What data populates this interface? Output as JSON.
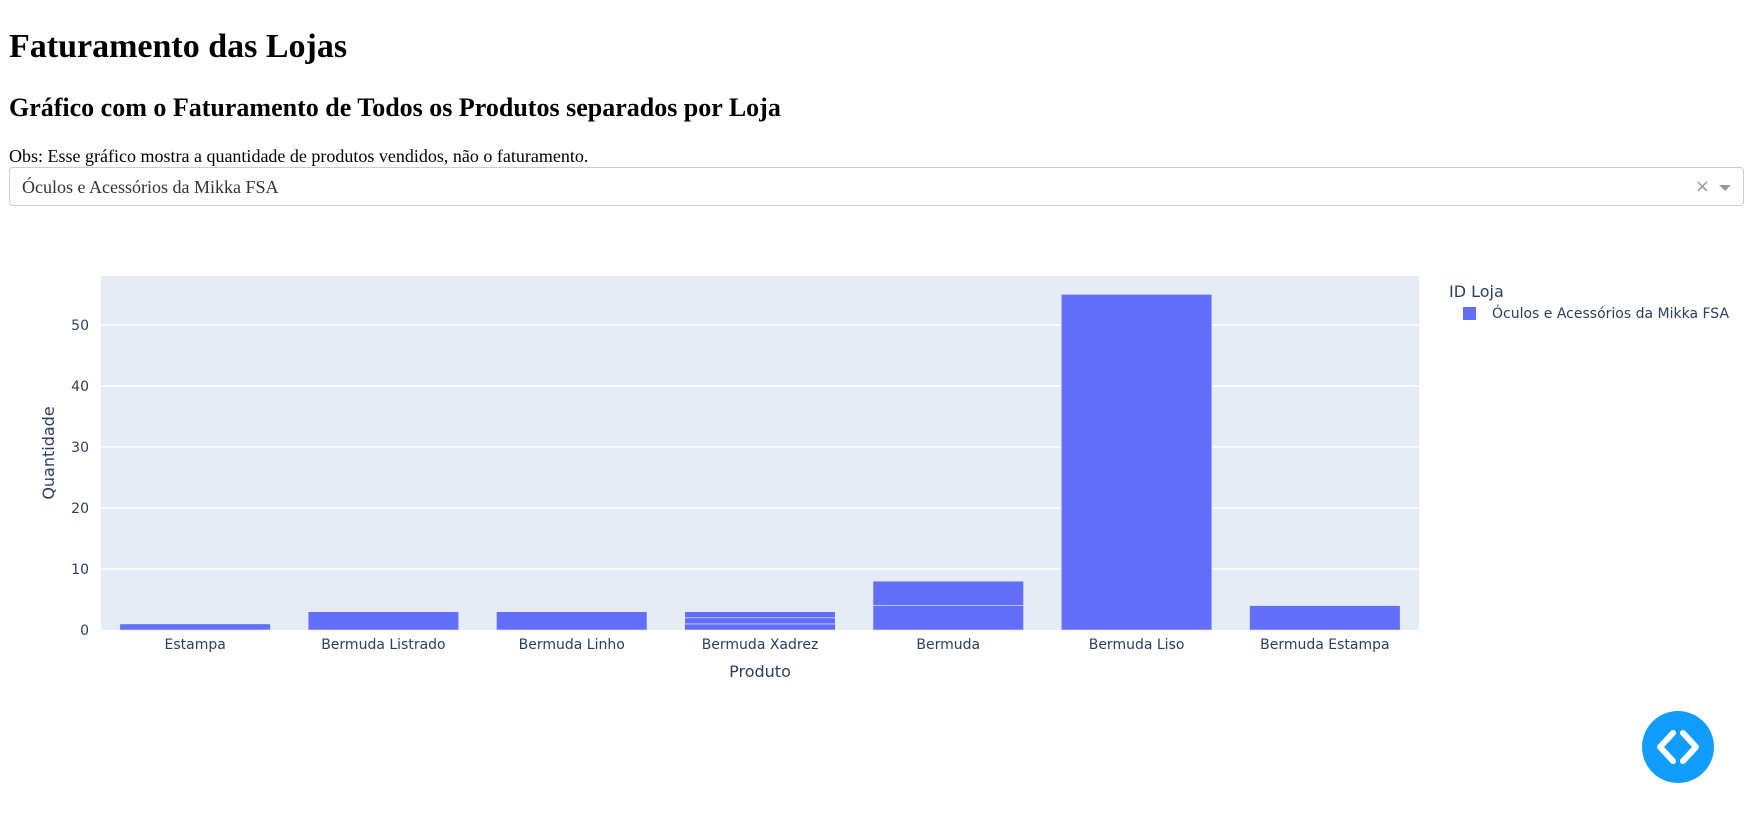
{
  "page": {
    "title": "Faturamento das Lojas",
    "subtitle": "Gráfico com o Faturamento de Todos os Produtos separados por Loja",
    "note": "Obs: Esse gráfico mostra a quantidade de produtos vendidos, não o faturamento."
  },
  "dropdown": {
    "selected": "Óculos e Acessórios da Mikka FSA",
    "clear_glyph": "×",
    "clear_icon": "close-icon",
    "arrow_icon": "chevron-down-icon"
  },
  "devtools_button": {
    "icon": "code-icon",
    "color": "#119dff"
  },
  "chart_data": {
    "type": "bar",
    "stacked": true,
    "categories": [
      "Estampa",
      "Bermuda Listrado",
      "Bermuda Linho",
      "Bermuda Xadrez",
      "Bermuda",
      "Bermuda Liso",
      "Bermuda Estampa"
    ],
    "values": [
      1,
      3,
      3,
      3,
      8,
      55,
      4
    ],
    "segments": [
      [
        1
      ],
      [
        3
      ],
      [
        3
      ],
      [
        1,
        1,
        1
      ],
      [
        4,
        4
      ],
      [
        55
      ],
      [
        4
      ]
    ],
    "xlabel": "Produto",
    "ylabel": "Quantidade",
    "ylim": [
      0,
      58
    ],
    "yticks": [
      0,
      10,
      20,
      30,
      40,
      50
    ],
    "grid": true,
    "bar_color": "#636efa",
    "plot_bg": "#e5ecf6",
    "legend": {
      "title": "ID Loja",
      "placement": "top-right",
      "entries": [
        {
          "name": "Óculos e Acessórios da Mikka FSA",
          "color": "#636efa"
        }
      ]
    }
  }
}
